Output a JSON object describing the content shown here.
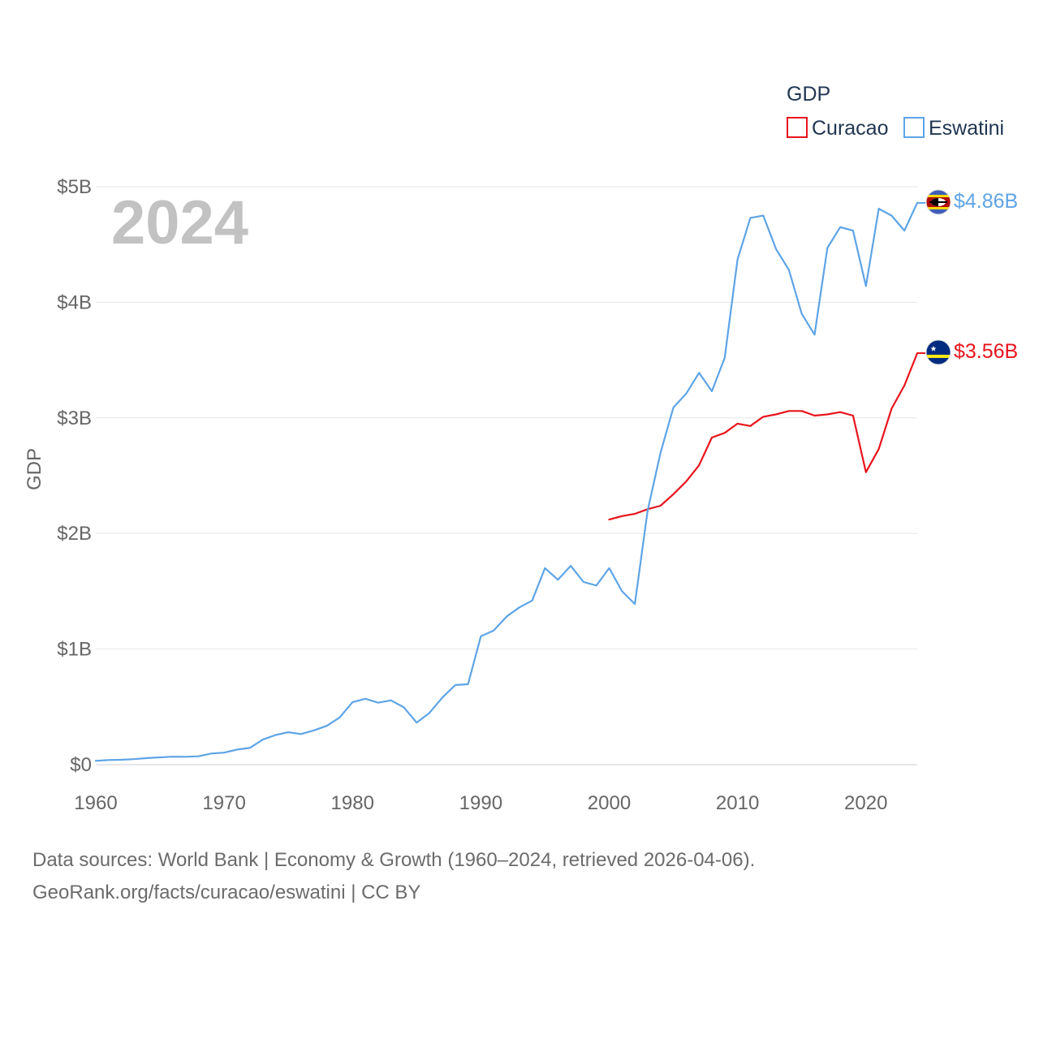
{
  "chart_data": {
    "type": "line",
    "year_label": "2024",
    "ylabel": "GDP",
    "ylim": [
      0,
      5000000000
    ],
    "xlim": [
      1960,
      2024
    ],
    "y_ticks": [
      {
        "value": 0,
        "label": "$0"
      },
      {
        "value": 1000000000,
        "label": "$1B"
      },
      {
        "value": 2000000000,
        "label": "$2B"
      },
      {
        "value": 3000000000,
        "label": "$3B"
      },
      {
        "value": 4000000000,
        "label": "$4B"
      },
      {
        "value": 5000000000,
        "label": "$5B"
      }
    ],
    "x_ticks": [
      {
        "value": 1960,
        "label": "1960"
      },
      {
        "value": 1970,
        "label": "1970"
      },
      {
        "value": 1980,
        "label": "1980"
      },
      {
        "value": 1990,
        "label": "1990"
      },
      {
        "value": 2000,
        "label": "2000"
      },
      {
        "value": 2010,
        "label": "2010"
      },
      {
        "value": 2020,
        "label": "2020"
      }
    ],
    "legend": {
      "title": "GDP",
      "position": "top-right"
    },
    "series": [
      {
        "name": "Curacao",
        "color": "#e8141c",
        "end_label": "$3.56B",
        "flag_icon": "curacao-flag-icon",
        "x": [
          2000,
          2001,
          2002,
          2003,
          2004,
          2005,
          2006,
          2007,
          2008,
          2009,
          2010,
          2011,
          2012,
          2013,
          2014,
          2015,
          2016,
          2017,
          2018,
          2019,
          2020,
          2021,
          2022,
          2023,
          2024
        ],
        "values": [
          2120000000,
          2150000000,
          2170000000,
          2210000000,
          2240000000,
          2340000000,
          2450000000,
          2590000000,
          2830000000,
          2870000000,
          2950000000,
          2930000000,
          3010000000,
          3030000000,
          3060000000,
          3060000000,
          3020000000,
          3030000000,
          3050000000,
          3020000000,
          2530000000,
          2730000000,
          3080000000,
          3280000000,
          3560000000
        ]
      },
      {
        "name": "Eswatini",
        "color": "#5ea4e6",
        "end_label": "$4.86B",
        "flag_icon": "eswatini-flag-icon",
        "x": [
          1960,
          1961,
          1962,
          1963,
          1964,
          1965,
          1966,
          1967,
          1968,
          1969,
          1970,
          1971,
          1972,
          1973,
          1974,
          1975,
          1976,
          1977,
          1978,
          1979,
          1980,
          1981,
          1982,
          1983,
          1984,
          1985,
          1986,
          1987,
          1988,
          1989,
          1990,
          1991,
          1992,
          1993,
          1994,
          1995,
          1996,
          1997,
          1998,
          1999,
          2000,
          2001,
          2002,
          2003,
          2004,
          2005,
          2006,
          2007,
          2008,
          2009,
          2010,
          2011,
          2012,
          2013,
          2014,
          2015,
          2016,
          2017,
          2018,
          2019,
          2020,
          2021,
          2022,
          2023,
          2024
        ],
        "values": [
          32000000,
          40000000,
          42000000,
          48000000,
          57000000,
          63000000,
          69000000,
          68000000,
          72000000,
          96000000,
          104000000,
          130000000,
          145000000,
          216000000,
          256000000,
          280000000,
          265000000,
          296000000,
          336000000,
          408000000,
          540000000,
          570000000,
          536000000,
          556000000,
          496000000,
          364000000,
          448000000,
          580000000,
          688000000,
          696000000,
          1110000000,
          1160000000,
          1280000000,
          1360000000,
          1420000000,
          1700000000,
          1600000000,
          1720000000,
          1580000000,
          1550000000,
          1700000000,
          1500000000,
          1390000000,
          2200000000,
          2700000000,
          3090000000,
          3210000000,
          3390000000,
          3230000000,
          3520000000,
          4370000000,
          4730000000,
          4750000000,
          4460000000,
          4280000000,
          3900000000,
          3720000000,
          4470000000,
          4650000000,
          4620000000,
          4140000000,
          4810000000,
          4750000000,
          4620000000,
          4860000000
        ]
      }
    ]
  },
  "footer": {
    "line1": "Data sources: World Bank | Economy & Growth (1960–2024, retrieved 2026-04-06).",
    "line2": "GeoRank.org/facts/curacao/eswatini | CC BY"
  }
}
